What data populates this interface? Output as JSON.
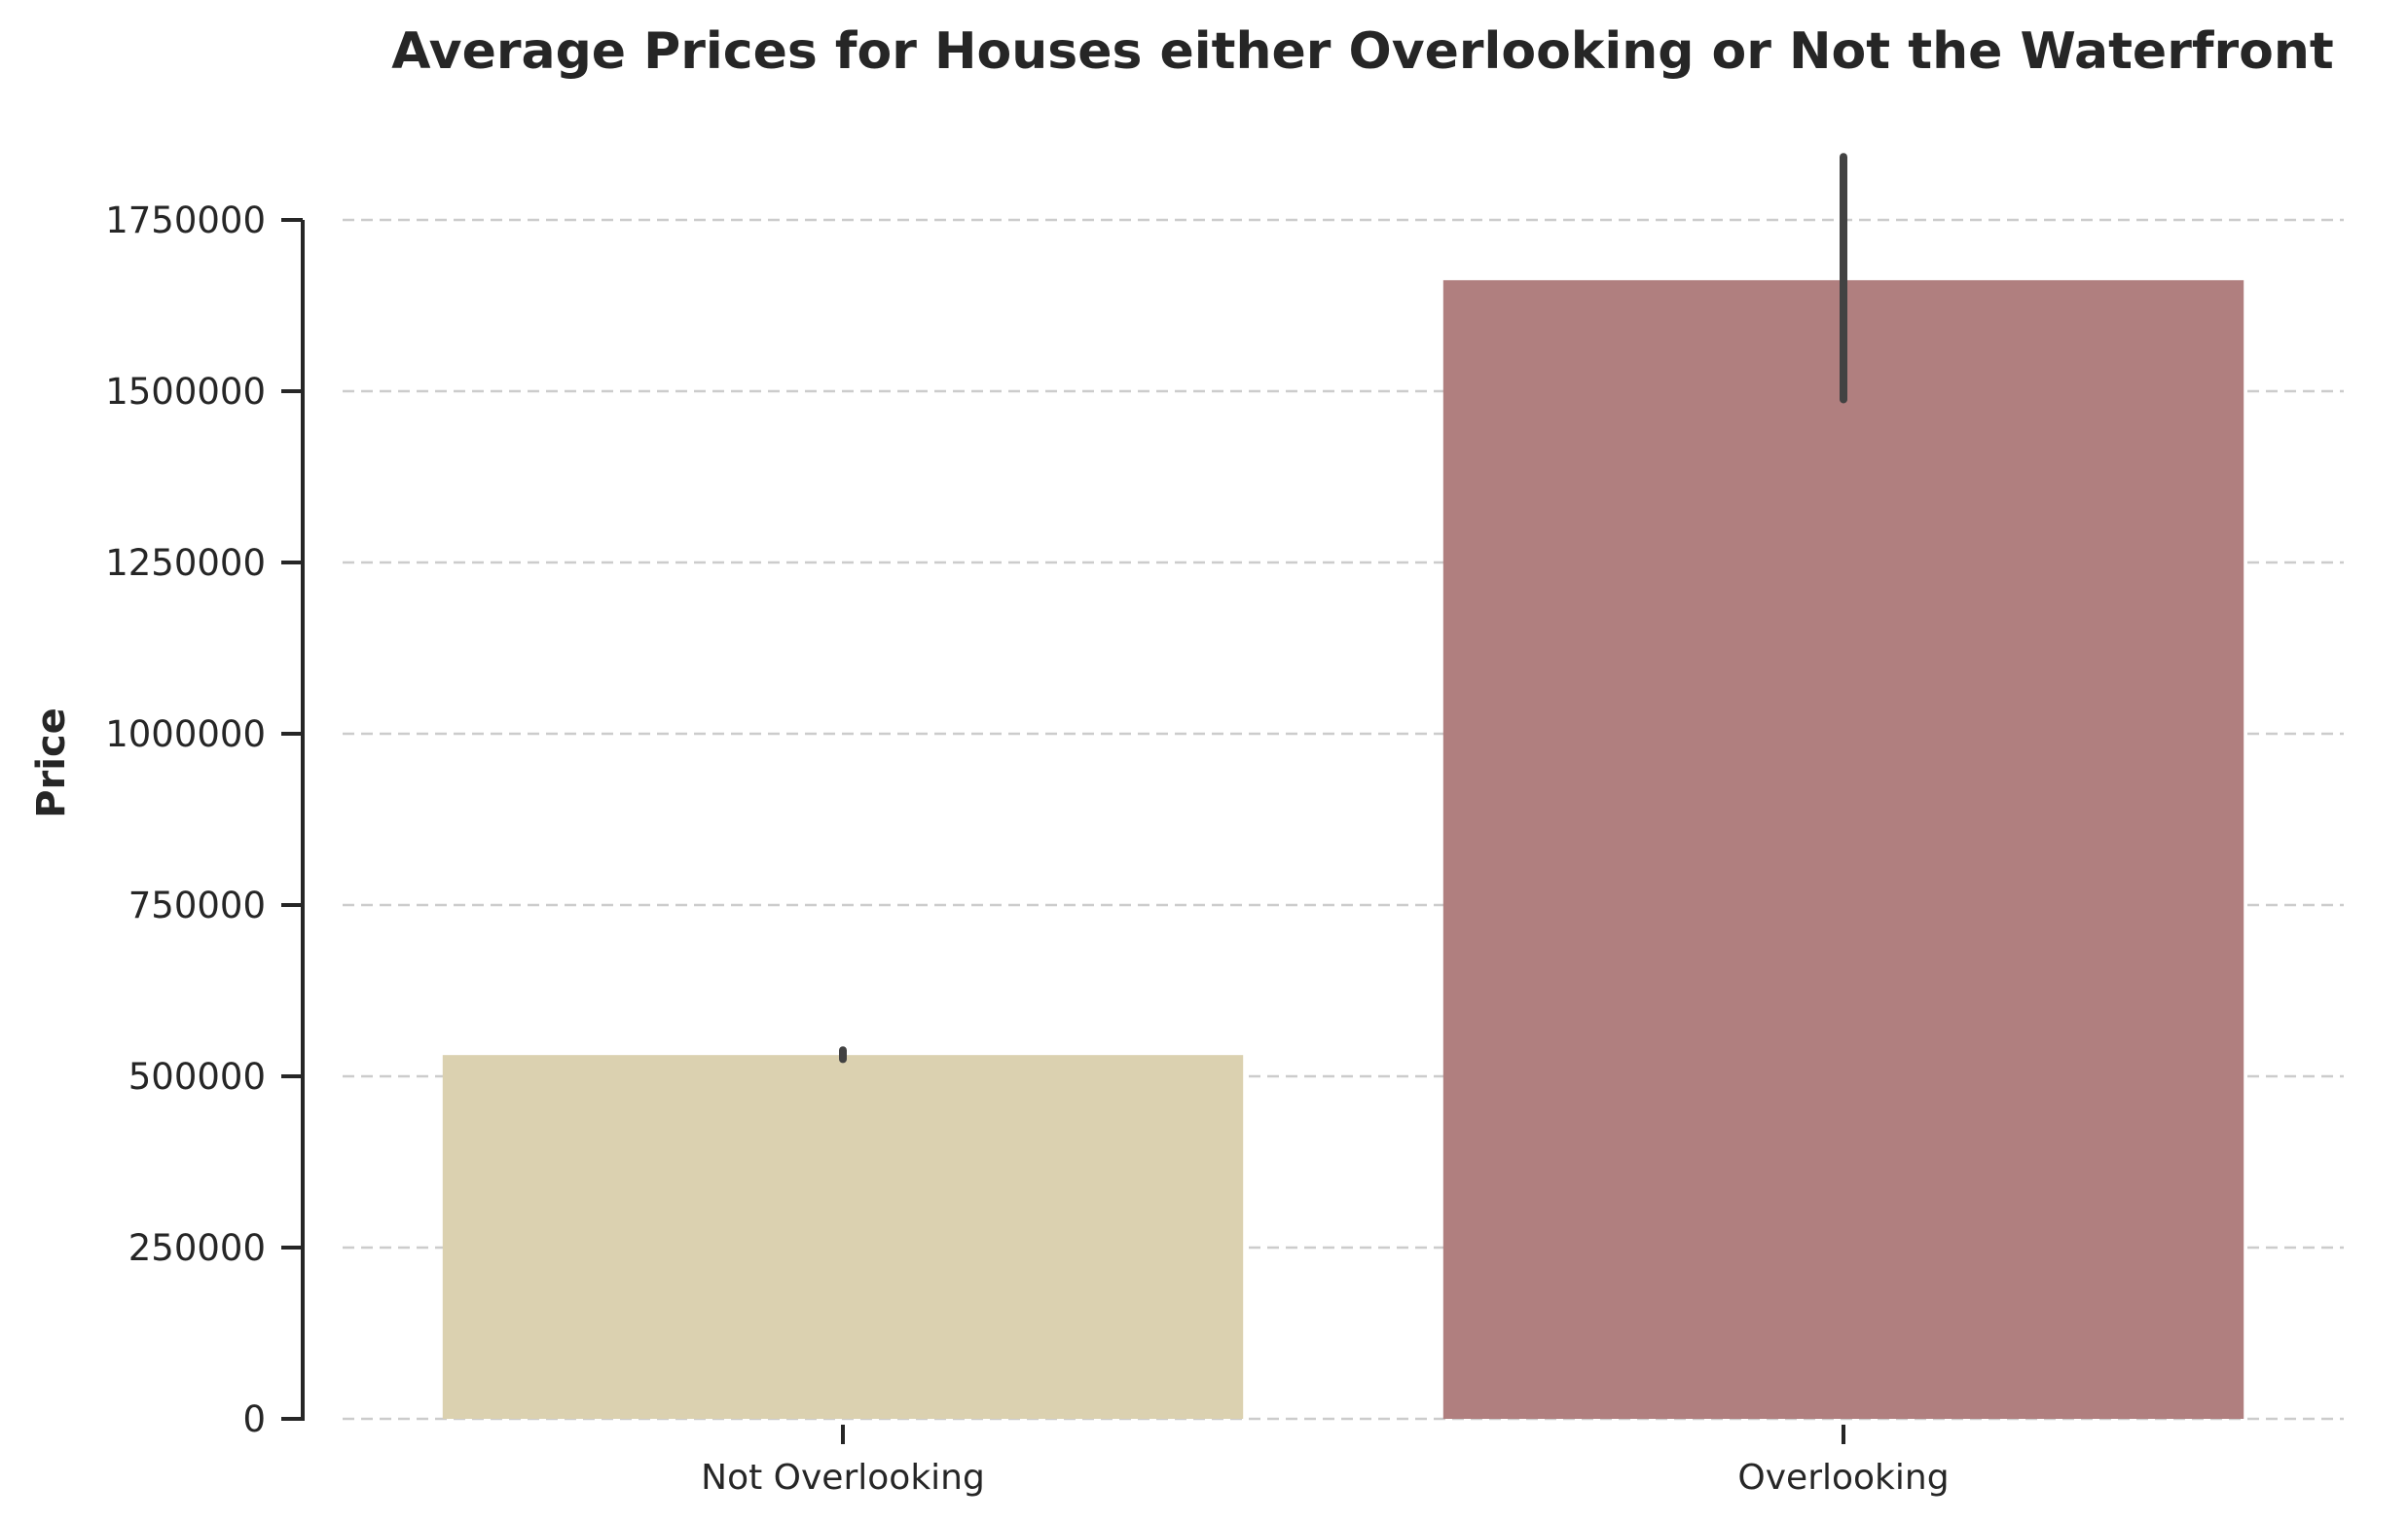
{
  "chart_data": {
    "type": "bar",
    "title": "Average Prices for Houses either Overlooking or Not the Waterfront",
    "xlabel": "",
    "ylabel": "Price",
    "categories": [
      "Not Overlooking",
      "Overlooking"
    ],
    "values": [
      531000,
      1662000
    ],
    "error_bars": [
      {
        "low": 525000,
        "high": 538000
      },
      {
        "low": 1488000,
        "high": 1842000
      }
    ],
    "colors": [
      "#dbd1b0",
      "#b07f7f"
    ],
    "error_color": "#424242",
    "ylim": [
      0,
      1750000
    ],
    "yticks": [
      0,
      250000,
      500000,
      750000,
      1000000,
      1250000,
      1500000,
      1750000
    ],
    "ytick_labels": [
      "0",
      "250000",
      "500000",
      "750000",
      "1000000",
      "1250000",
      "1500000",
      "1750000"
    ],
    "grid": {
      "y": true,
      "x": false,
      "style": "dashed",
      "color": "#cccccc"
    },
    "legend": "none"
  }
}
